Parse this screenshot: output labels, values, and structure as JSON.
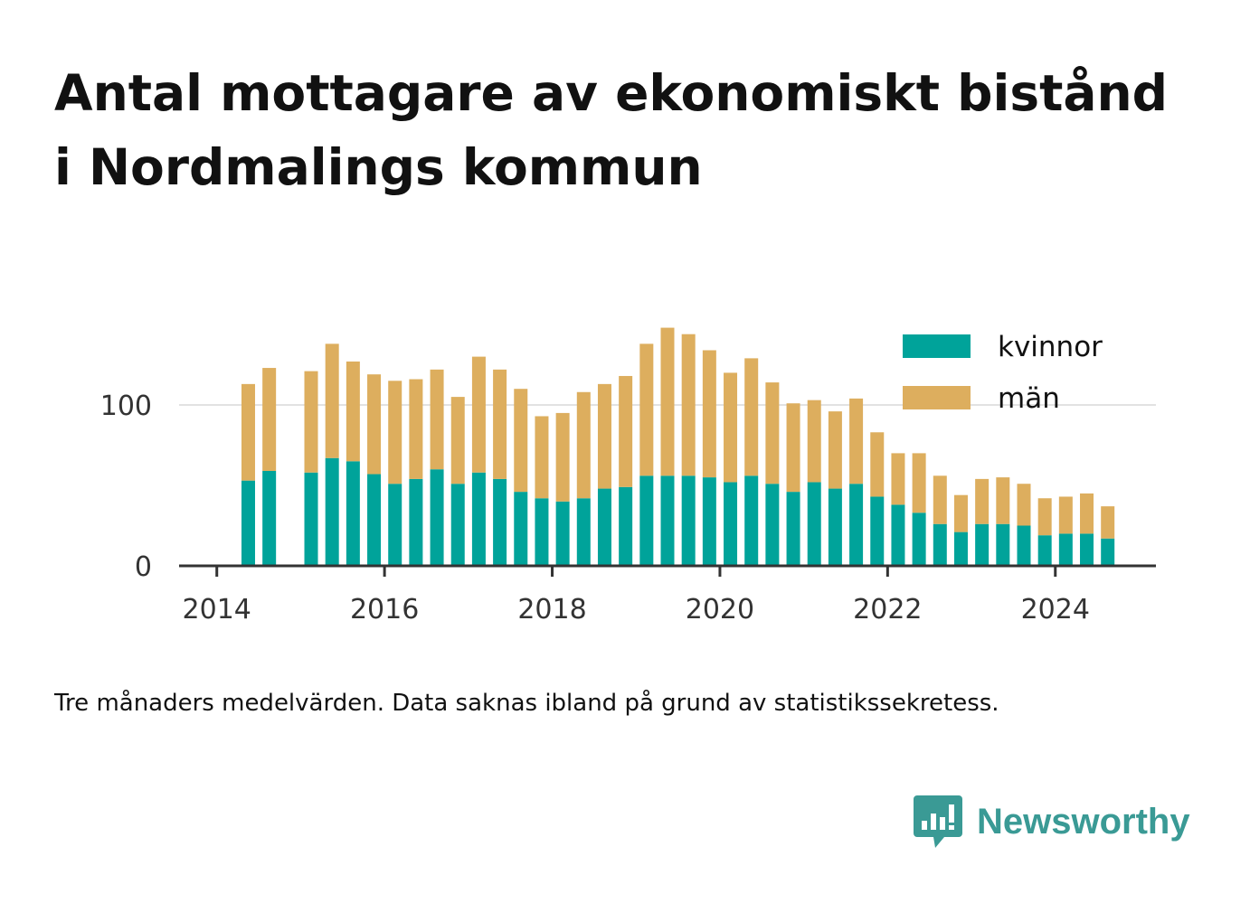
{
  "title": "Antal mottagare av ekonomiskt bistånd i Nordmalings kommun",
  "caption": "Tre månaders medelvärden. Data saknas ibland på grund av statistikssekretess.",
  "brand": {
    "name": "Newsworthy",
    "icon": "newsworthy-chat-bars-icon",
    "color": "#3a9a95"
  },
  "colors": {
    "kvinnor": "#00a39a",
    "man": "#ddae5e",
    "grid": "#e2e2e2",
    "axis": "#333333"
  },
  "chart_data": {
    "type": "bar",
    "stacked": true,
    "x_unit": "year",
    "x": [
      2014.375,
      2014.625,
      2015.125,
      2015.375,
      2015.625,
      2015.875,
      2016.125,
      2016.375,
      2016.625,
      2016.875,
      2017.125,
      2017.375,
      2017.625,
      2017.875,
      2018.125,
      2018.375,
      2018.625,
      2018.875,
      2019.125,
      2019.375,
      2019.625,
      2019.875,
      2020.125,
      2020.375,
      2020.625,
      2020.875,
      2021.125,
      2021.375,
      2021.625,
      2021.875,
      2022.125,
      2022.375,
      2022.625,
      2022.875,
      2023.125,
      2023.375,
      2023.625,
      2023.875,
      2024.125,
      2024.375,
      2024.625
    ],
    "series": [
      {
        "name": "kvinnor",
        "values": [
          53,
          59,
          58,
          67,
          65,
          57,
          51,
          54,
          60,
          51,
          58,
          54,
          46,
          42,
          40,
          42,
          48,
          49,
          56,
          56,
          56,
          55,
          52,
          56,
          51,
          46,
          52,
          48,
          51,
          43,
          38,
          33,
          26,
          21,
          26,
          26,
          25,
          19,
          20,
          20,
          17
        ]
      },
      {
        "name": "män",
        "values": [
          60,
          64,
          63,
          71,
          62,
          62,
          64,
          62,
          62,
          54,
          72,
          68,
          64,
          51,
          55,
          66,
          65,
          69,
          82,
          92,
          88,
          79,
          68,
          73,
          63,
          55,
          51,
          48,
          53,
          40,
          32,
          37,
          30,
          23,
          28,
          29,
          26,
          23,
          23,
          25,
          20
        ]
      }
    ],
    "xlim": [
      2013.55,
      2025.2
    ],
    "ylim": [
      0,
      175
    ],
    "x_ticks": [
      2014,
      2016,
      2018,
      2020,
      2022,
      2024
    ],
    "x_tick_labels": [
      "2014",
      "2016",
      "2018",
      "2020",
      "2022",
      "2024"
    ],
    "y_ticks": [
      0,
      100
    ],
    "y_tick_labels": [
      "0",
      "100"
    ],
    "grid": "horizontal",
    "legend": {
      "position": "top-right",
      "labels": [
        "kvinnor",
        "män"
      ]
    }
  }
}
